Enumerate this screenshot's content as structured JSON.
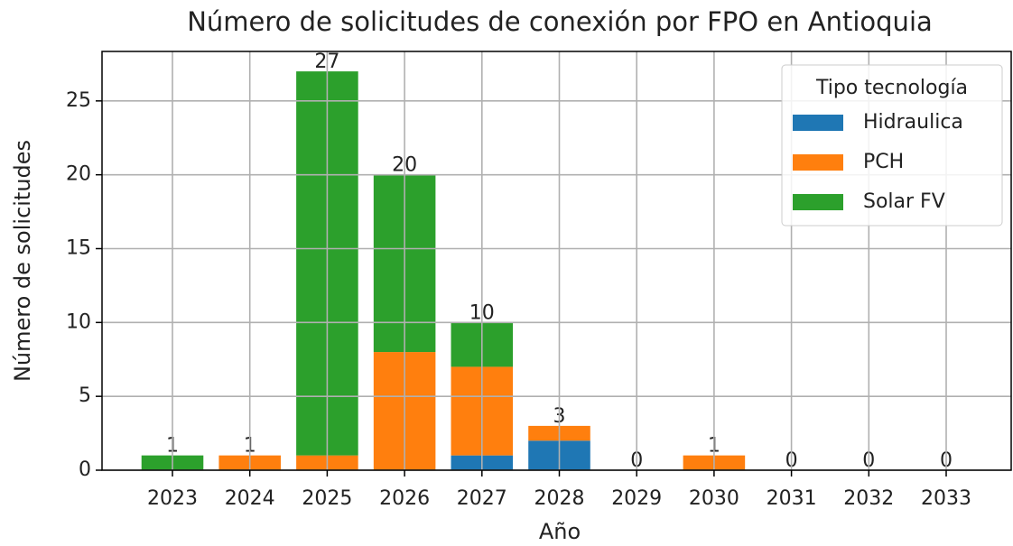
{
  "chart_data": {
    "type": "stacked_bar",
    "title": "Número de solicitudes de conexión por FPO en Antioquia",
    "xlabel": "Año",
    "ylabel": "Número de solicitudes",
    "categories": [
      "2023",
      "2024",
      "2025",
      "2026",
      "2027",
      "2028",
      "2029",
      "2030",
      "2031",
      "2032",
      "2033"
    ],
    "series": [
      {
        "name": "Hidraulica",
        "color": "#1f77b4",
        "values": [
          0,
          0,
          0,
          0,
          1,
          2,
          0,
          0,
          0,
          0,
          0
        ]
      },
      {
        "name": "PCH",
        "color": "#ff7f0e",
        "values": [
          0,
          1,
          1,
          8,
          6,
          1,
          0,
          1,
          0,
          0,
          0
        ]
      },
      {
        "name": "Solar FV",
        "color": "#2ca02c",
        "values": [
          1,
          0,
          26,
          12,
          3,
          0,
          0,
          0,
          0,
          0,
          0
        ]
      }
    ],
    "totals": [
      1,
      1,
      27,
      20,
      10,
      3,
      0,
      1,
      0,
      0,
      0
    ],
    "legend_title": "Tipo tecnología",
    "legend": "upper right",
    "ylim": [
      0,
      28.35
    ],
    "yticks": [
      0,
      5,
      10,
      15,
      20,
      25
    ],
    "grid": true
  }
}
